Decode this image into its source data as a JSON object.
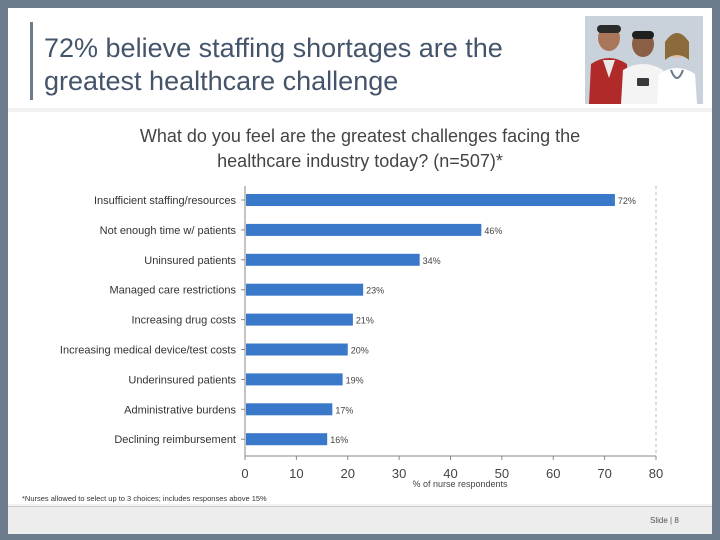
{
  "slide": {
    "title": "72% believe staffing shortages are the greatest healthcare challenge",
    "subtitle_line1": "What do you feel are the greatest challenges facing the",
    "subtitle_line2": "healthcare industry today? (n=507)*",
    "footnote": "*Nurses allowed to select up to 3 choices; includes responses above 15%",
    "slide_number": "Slide | 8"
  },
  "colors": {
    "bar": "#3a78c9",
    "title": "#44546a",
    "frame": "#6d7c8c"
  },
  "chart_data": {
    "type": "bar",
    "orientation": "horizontal",
    "title": "What do you feel are the greatest challenges facing the healthcare industry today? (n=507)*",
    "categories": [
      "Insufficient staffing/resources",
      "Not enough time w/ patients",
      "Uninsured patients",
      "Managed care restrictions",
      "Increasing drug costs",
      "Increasing medical device/test costs",
      "Underinsured patients",
      "Administrative burdens",
      "Declining reimbursement"
    ],
    "values": [
      72,
      46,
      34,
      23,
      21,
      20,
      19,
      17,
      16
    ],
    "data_labels": [
      "72%",
      "46%",
      "34%",
      "23%",
      "21%",
      "20%",
      "19%",
      "17%",
      "16%"
    ],
    "xlabel": "% of nurse respondents",
    "ylabel": "",
    "xlim": [
      0,
      80
    ],
    "xticks": [
      0,
      10,
      20,
      30,
      40,
      50,
      60,
      70,
      80
    ],
    "grid": false
  }
}
